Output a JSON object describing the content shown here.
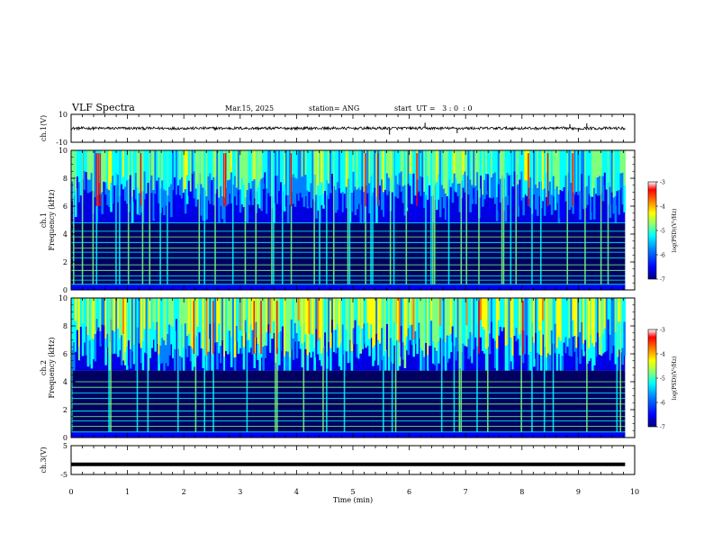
{
  "header": {
    "title": "VLF Spectra",
    "date": "Mar.15, 2025",
    "station": "station= ANG",
    "start": "start  UT =   3 : 0  : 0"
  },
  "chart_data": [
    {
      "type": "line",
      "id": "ch1-waveform",
      "ylabel": "ch.1(V)",
      "ylim": [
        -10,
        10
      ],
      "yticks": [
        "10",
        "-10"
      ],
      "xlim": [
        0,
        10
      ],
      "description_values": {
        "baseline_level": 0.0,
        "noise_amplitude": 1.0,
        "t_end": 9.83
      },
      "spikes": [
        {
          "t": 5.65,
          "v": -4.5
        },
        {
          "t": 6.85,
          "v": -3.5
        },
        {
          "t": 6.28,
          "v": 4.0
        },
        {
          "t": 8.85,
          "v": 3.0
        },
        {
          "t": 9.15,
          "v": 3.5
        },
        {
          "t": 9.0,
          "v": -2.5
        }
      ]
    },
    {
      "type": "heatmap",
      "id": "ch1-spectrogram",
      "ylabel_top": "ch.1",
      "ylabel": "Frequency (kHz)",
      "ylim": [
        0,
        10
      ],
      "yticks": [
        "0",
        "2",
        "4",
        "6",
        "8",
        "10"
      ],
      "xlim": [
        0,
        10
      ],
      "data_extent_min": 9.83,
      "colorbar": {
        "label": "log(PSD)(V²/Hz)",
        "range": [
          -7,
          -3
        ],
        "ticks": [
          "-3",
          "-4",
          "-5",
          "-6",
          "-7"
        ]
      },
      "bands_kHz": [
        0.4,
        0.7,
        1.0,
        1.4,
        1.8,
        2.3,
        2.7,
        3.0,
        3.4,
        3.8,
        4.2,
        4.8
      ],
      "activity": 0.55
    },
    {
      "type": "heatmap",
      "id": "ch2-spectrogram",
      "ylabel_top": "ch.2",
      "ylabel": "Frequency (kHz)",
      "ylim": [
        0,
        10
      ],
      "yticks": [
        "0",
        "2",
        "4",
        "6",
        "8",
        "10"
      ],
      "xlim": [
        0,
        10
      ],
      "data_extent_min": 9.83,
      "colorbar": {
        "label": "log(PSD)(V²/Hz)",
        "range": [
          -7,
          -3
        ],
        "ticks": [
          "-3",
          "-4",
          "-5",
          "-6",
          "-7"
        ]
      },
      "bands_kHz": [
        0.4,
        0.8,
        1.2,
        1.5,
        1.9,
        2.4,
        2.8,
        3.2,
        3.6,
        4.0
      ],
      "activity": 0.8
    },
    {
      "type": "line",
      "id": "ch3-waveform",
      "ylabel": "ch.3(V)",
      "ylim": [
        -5,
        5
      ],
      "yticks": [
        "5",
        "-5"
      ],
      "xlim": [
        0,
        10
      ],
      "description_values": {
        "baseline_level": -1.5,
        "t_end": 9.83
      }
    }
  ],
  "xaxis": {
    "label": "Time (min)",
    "ticks": [
      "0",
      "1",
      "2",
      "3",
      "4",
      "5",
      "6",
      "7",
      "8",
      "9",
      "10"
    ]
  },
  "colors": {
    "colormap": [
      "#00007f",
      "#0000ff",
      "#007fff",
      "#00ffff",
      "#7fff7f",
      "#ffff00",
      "#ff7f00",
      "#ff0000",
      "#7f0000"
    ]
  }
}
